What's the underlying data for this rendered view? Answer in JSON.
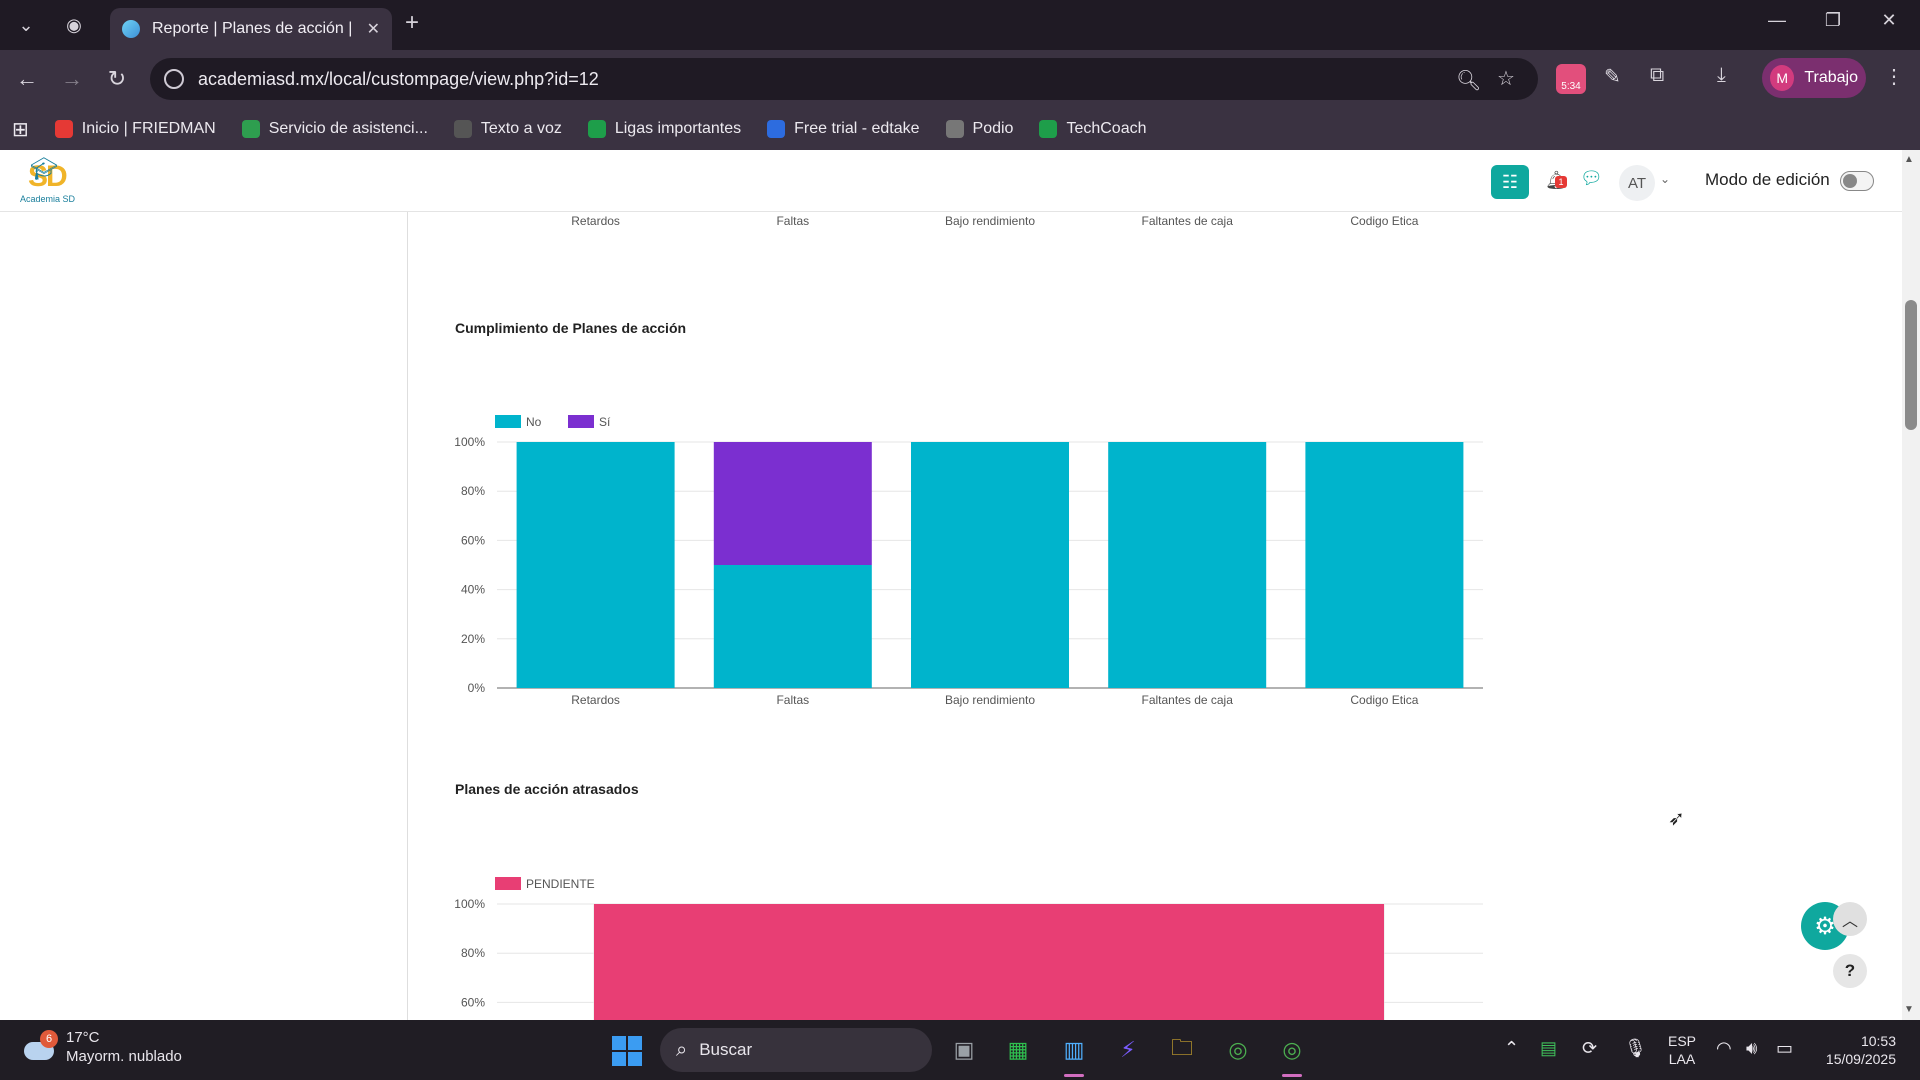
{
  "browser": {
    "tab_title": "Reporte | Planes de acción | ASD",
    "url": "academiasd.mx/local/custompage/view.php?id=12",
    "extension_badge": "5:34",
    "profile_initial": "M",
    "profile_label": "Trabajo",
    "bookmarks": [
      {
        "label": "Inicio | FRIEDMAN",
        "icon": "friedman-icon",
        "color": "#e53935"
      },
      {
        "label": "Servicio de asistenci...",
        "icon": "headset-icon",
        "color": "#2e9e4f"
      },
      {
        "label": "Texto a voz",
        "icon": "home-icon",
        "color": "#555555"
      },
      {
        "label": "Ligas importantes",
        "icon": "sheets-icon",
        "color": "#1e9e4a"
      },
      {
        "label": "Free trial - edtake",
        "icon": "edtake-icon",
        "color": "#2d6cdf"
      },
      {
        "label": "Podio",
        "icon": "globe-icon",
        "color": "#777777"
      },
      {
        "label": "TechCoach",
        "icon": "sheets-icon",
        "color": "#1e9e4a"
      }
    ]
  },
  "site": {
    "logo_text": "Academia SD",
    "user_initials": "AT",
    "notif_count": "1",
    "edit_mode_label": "Modo de edición"
  },
  "top_chart_categories": [
    "Retardos",
    "Faltas",
    "Bajo rendimiento",
    "Faltantes de caja",
    "Codigo Etica"
  ],
  "charts": {
    "cumplimiento": {
      "title": "Cumplimiento de Planes de acción"
    },
    "atrasados": {
      "title": "Planes de acción atrasados"
    }
  },
  "chart_data": [
    {
      "type": "bar",
      "stacked": true,
      "title": "Cumplimiento de Planes de acción",
      "categories": [
        "Retardos",
        "Faltas",
        "Bajo rendimiento",
        "Faltantes de caja",
        "Codigo Etica"
      ],
      "series": [
        {
          "name": "No",
          "color": "#00b4cc",
          "values": [
            100,
            50,
            100,
            100,
            100
          ]
        },
        {
          "name": "Sí",
          "color": "#7b2fd0",
          "values": [
            0,
            50,
            0,
            0,
            0
          ]
        }
      ],
      "yticks": [
        "0%",
        "20%",
        "40%",
        "60%",
        "80%",
        "100%"
      ],
      "ylim": [
        0,
        100
      ],
      "legend": "top-left",
      "grid": true
    },
    {
      "type": "bar",
      "stacked": true,
      "title": "Planes de acción atrasados",
      "series": [
        {
          "name": "PENDIENTE",
          "color": "#e83e74",
          "values": [
            100
          ]
        }
      ],
      "yticks": [
        "60%",
        "80%",
        "100%"
      ],
      "ylim": [
        0,
        100
      ],
      "legend": "top-left",
      "grid": true
    }
  ],
  "taskbar": {
    "weather_temp": "17°C",
    "weather_desc": "Mayorm. nublado",
    "weather_badge": "6",
    "search_label": "Buscar",
    "lang_top": "ESP",
    "lang_bottom": "LAA",
    "time": "10:53",
    "date": "15/09/2025"
  }
}
